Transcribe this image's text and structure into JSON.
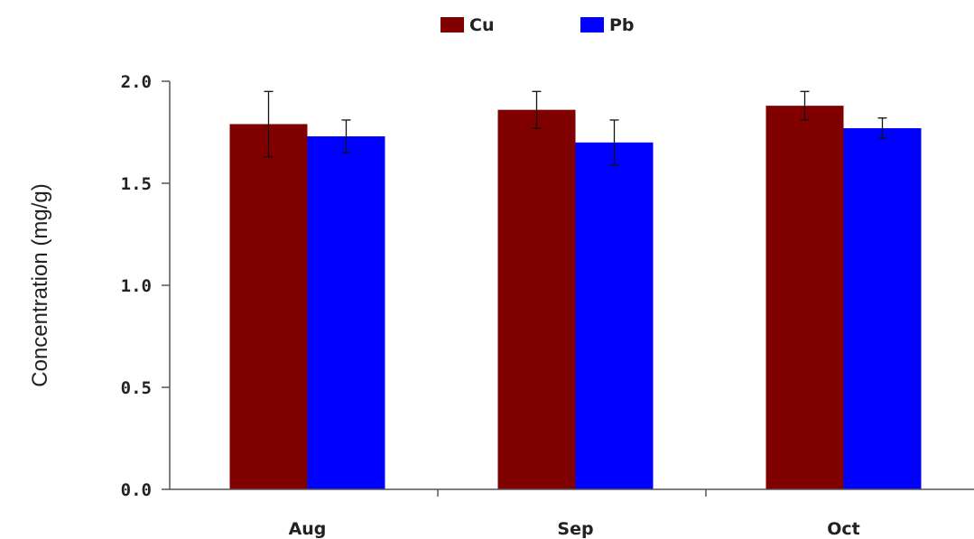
{
  "chart_data": {
    "type": "bar",
    "title": "",
    "xlabel": "",
    "ylabel": "Concentration (mg/g)",
    "categories": [
      "Aug",
      "Sep",
      "Oct"
    ],
    "series": [
      {
        "name": "Cu",
        "color": "#800000",
        "values": [
          1.79,
          1.86,
          1.88
        ],
        "errors": [
          0.16,
          0.09,
          0.07
        ]
      },
      {
        "name": "Pb",
        "color": "#0000ff",
        "values": [
          1.73,
          1.7,
          1.77
        ],
        "errors": [
          0.08,
          0.11,
          0.05
        ]
      }
    ],
    "ylim": [
      0.0,
      2.0
    ],
    "yticks": [
      "0.0",
      "0.5",
      "1.0",
      "1.5",
      "2.0"
    ],
    "grid": false,
    "legend_position": "top-center"
  }
}
